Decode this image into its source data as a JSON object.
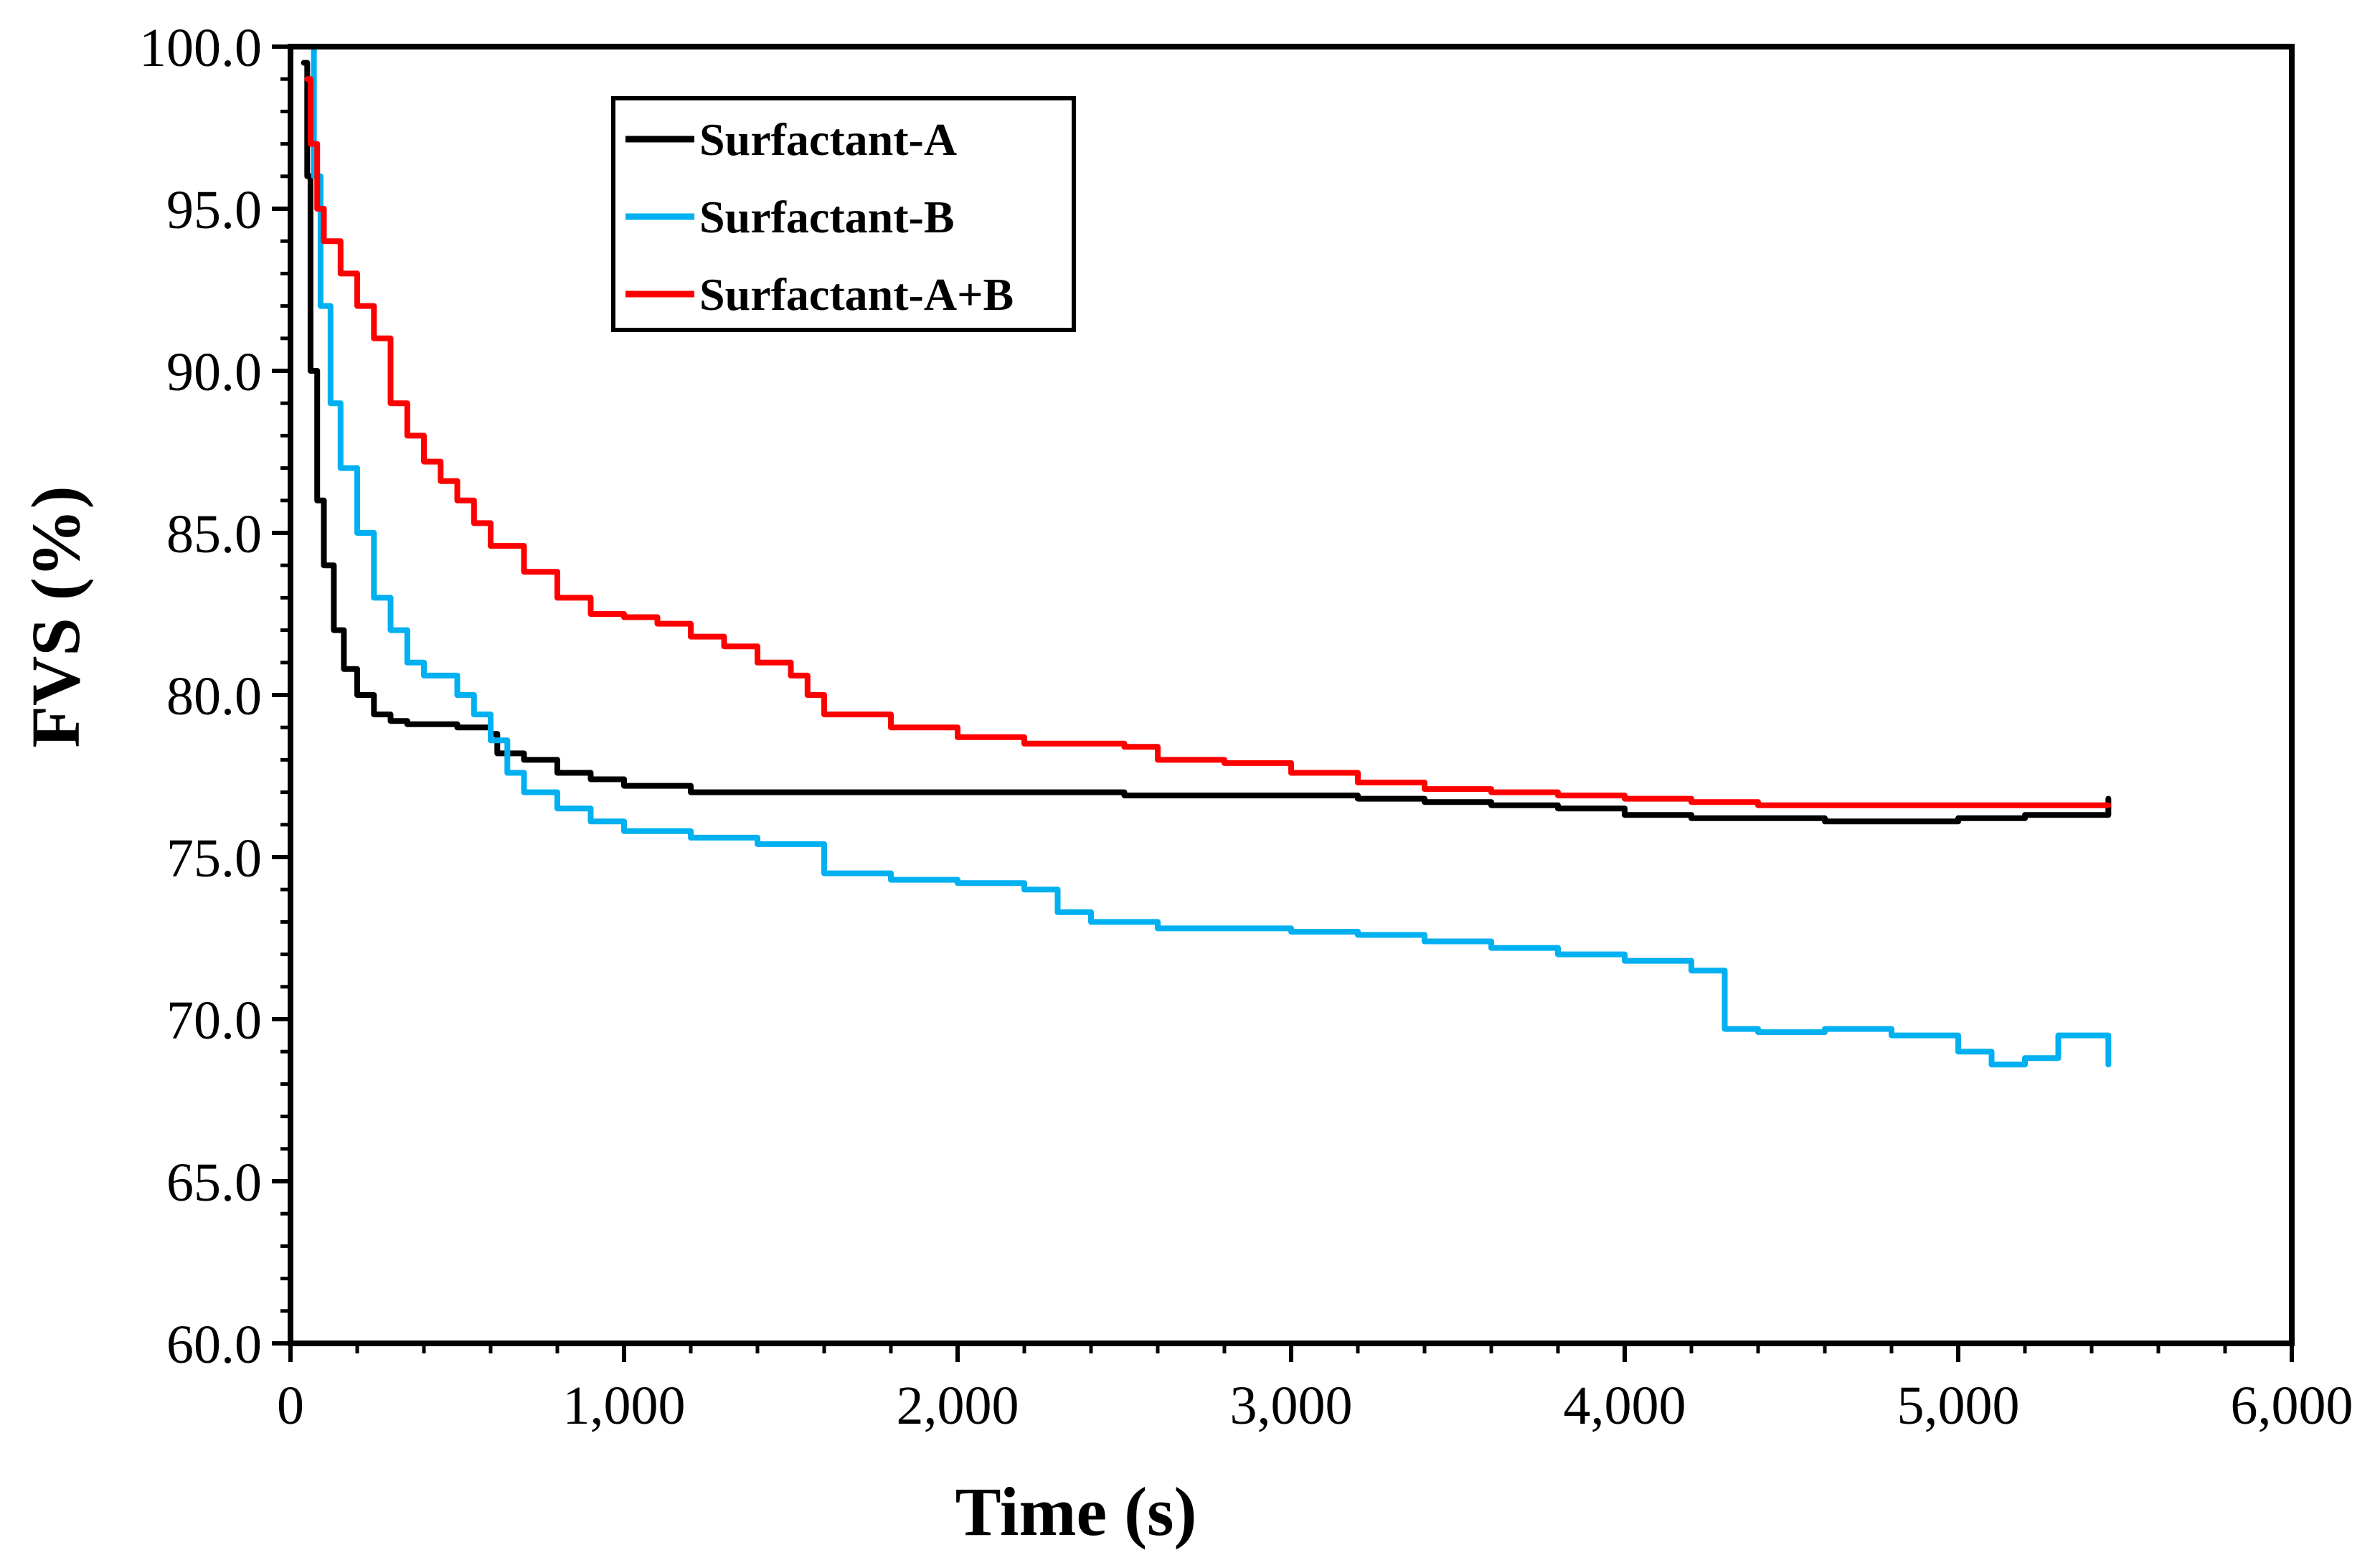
{
  "chart_data": {
    "type": "line",
    "title": "",
    "xlabel": "Time (s)",
    "ylabel": "FVS (%)",
    "xlim": [
      0,
      6000
    ],
    "ylim": [
      60,
      100
    ],
    "x_ticks": [
      0,
      1000,
      2000,
      3000,
      4000,
      5000,
      6000
    ],
    "x_tick_labels": [
      "0",
      "1,000",
      "2,000",
      "3,000",
      "4,000",
      "5,000",
      "6,000"
    ],
    "y_ticks": [
      60,
      65,
      70,
      75,
      80,
      85,
      90,
      95,
      100
    ],
    "y_tick_labels": [
      "60.0",
      "65.0",
      "70.0",
      "75.0",
      "80.0",
      "85.0",
      "90.0",
      "95.0",
      "100.0"
    ],
    "grid": false,
    "legend_position": "top-left",
    "series": [
      {
        "name": "Surfactant-A",
        "color": "#000000",
        "x": [
          40,
          50,
          60,
          80,
          100,
          130,
          160,
          200,
          250,
          300,
          350,
          400,
          500,
          550,
          600,
          620,
          700,
          800,
          900,
          1000,
          1200,
          1400,
          1600,
          2000,
          2500,
          3000,
          3200,
          3400,
          3600,
          3800,
          4000,
          4200,
          4400,
          4600,
          4800,
          5000,
          5200,
          5450
        ],
        "values": [
          99.5,
          96,
          90,
          86,
          84,
          82,
          80.8,
          80,
          79.4,
          79.2,
          79.1,
          79.1,
          79.0,
          79.0,
          78.8,
          78.2,
          78.0,
          77.6,
          77.4,
          77.2,
          77.0,
          77.0,
          77.0,
          77.0,
          76.9,
          76.9,
          76.8,
          76.7,
          76.6,
          76.5,
          76.3,
          76.2,
          76.2,
          76.1,
          76.1,
          76.2,
          76.3,
          76.8
        ]
      },
      {
        "name": "Surfactant-B",
        "color": "#00B0F0",
        "x": [
          60,
          70,
          90,
          120,
          150,
          200,
          250,
          300,
          350,
          400,
          450,
          500,
          550,
          600,
          650,
          700,
          800,
          900,
          1000,
          1200,
          1400,
          1600,
          1800,
          2000,
          2200,
          2300,
          2400,
          2600,
          3000,
          3200,
          3400,
          3600,
          3800,
          4000,
          4200,
          4300,
          4400,
          4600,
          4800,
          5000,
          5100,
          5200,
          5300,
          5450
        ],
        "values": [
          100,
          96,
          92,
          89,
          87,
          85,
          83,
          82,
          81,
          80.6,
          80.6,
          80,
          79.4,
          78.6,
          77.6,
          77.0,
          76.5,
          76.1,
          75.8,
          75.6,
          75.4,
          74.5,
          74.3,
          74.2,
          74.0,
          73.3,
          73.0,
          72.8,
          72.7,
          72.6,
          72.4,
          72.2,
          72.0,
          71.8,
          71.5,
          69.7,
          69.6,
          69.7,
          69.5,
          69.0,
          68.6,
          68.8,
          69.5,
          68.6
        ]
      },
      {
        "name": "Surfactant-A+B",
        "color": "#FF0000",
        "x": [
          50,
          60,
          80,
          100,
          150,
          200,
          250,
          300,
          350,
          400,
          450,
          500,
          550,
          600,
          700,
          800,
          900,
          1000,
          1100,
          1200,
          1300,
          1400,
          1500,
          1550,
          1600,
          1800,
          2000,
          2200,
          2500,
          2600,
          2800,
          3000,
          3200,
          3400,
          3600,
          3800,
          4000,
          4200,
          4400,
          4600,
          4800,
          5000,
          5200,
          5450
        ],
        "values": [
          99,
          97,
          95,
          94,
          93,
          92,
          91,
          89,
          88,
          87.2,
          86.6,
          86,
          85.3,
          84.6,
          83.8,
          83,
          82.5,
          82.4,
          82.2,
          81.8,
          81.5,
          81,
          80.6,
          80,
          79.4,
          79.0,
          78.7,
          78.5,
          78.4,
          78.0,
          77.9,
          77.6,
          77.3,
          77.1,
          77.0,
          76.9,
          76.8,
          76.7,
          76.6,
          76.6,
          76.6,
          76.6,
          76.6,
          76.6
        ]
      }
    ]
  }
}
